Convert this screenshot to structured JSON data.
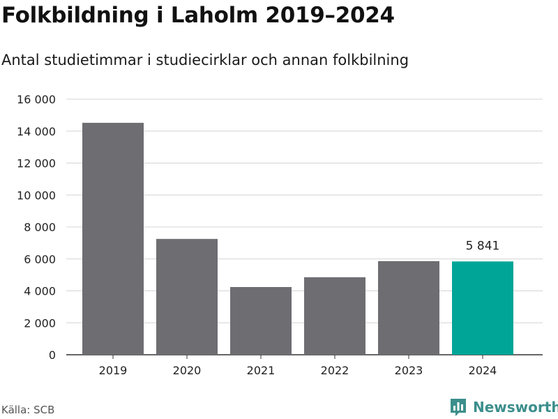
{
  "header": {
    "title": "Folkbildning i Laholm 2019–2024",
    "subtitle": "Antal studietimmar i studiecirklar och annan folkbilning"
  },
  "footer": {
    "source": "Källa: SCB",
    "brand": "Newsworthy",
    "brand_icon": "newsworthy-logo-icon"
  },
  "chart_data": {
    "type": "bar",
    "title": "Folkbildning i Laholm 2019–2024",
    "subtitle": "Antal studietimmar i studiecirklar och annan folkbilning",
    "xlabel": "",
    "ylabel": "",
    "categories": [
      "2019",
      "2020",
      "2021",
      "2022",
      "2023",
      "2024"
    ],
    "values": [
      14520,
      7250,
      4240,
      4850,
      5860,
      5841
    ],
    "ylim": [
      0,
      16000
    ],
    "yticks": [
      0,
      2000,
      4000,
      6000,
      8000,
      10000,
      12000,
      14000,
      16000
    ],
    "ytick_labels": [
      "0",
      "2 000",
      "4 000",
      "6 000",
      "8 000",
      "10 000",
      "12 000",
      "14 000",
      "16 000"
    ],
    "grid": true,
    "colors": {
      "default": "#6e6d72",
      "highlight": "#00a597"
    },
    "highlight_index": 5,
    "data_labels": [
      {
        "index": 5,
        "text": "5 841"
      }
    ]
  }
}
